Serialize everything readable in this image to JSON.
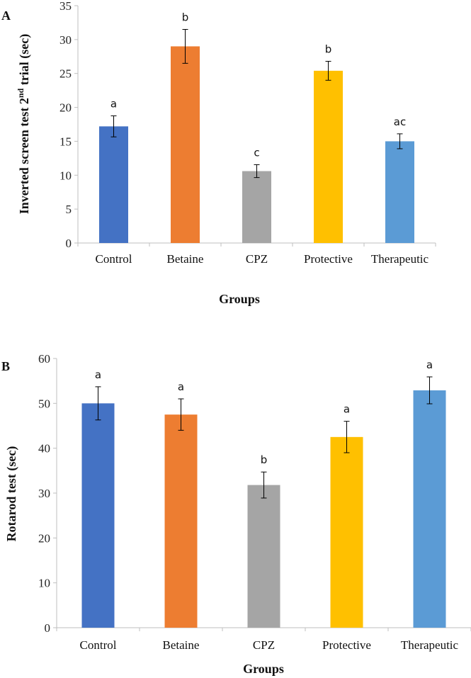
{
  "chart_data": [
    {
      "type": "bar",
      "panel": "A",
      "categories": [
        "Control",
        "Betaine",
        "CPZ",
        "Protective",
        "Therapeutic"
      ],
      "values": [
        17.2,
        29.0,
        10.6,
        25.4,
        15.0
      ],
      "errors": [
        1.55,
        2.5,
        0.95,
        1.4,
        1.1
      ],
      "significance": [
        "a",
        "b",
        "c",
        "b",
        "ac"
      ],
      "colors": [
        "#4472C4",
        "#ED7D31",
        "#A5A5A5",
        "#FFC000",
        "#5B9BD5"
      ],
      "xlabel": "Groups",
      "ylabel_parts": [
        "Inverted screen test 2",
        "nd",
        " trial (sec)"
      ],
      "ylim": [
        0,
        35
      ],
      "yticks": [
        "0",
        "5",
        "10",
        "15",
        "20",
        "25",
        "30",
        "35"
      ],
      "grid": false
    },
    {
      "type": "bar",
      "panel": "B",
      "categories": [
        "Control",
        "Betaine",
        "CPZ",
        "Protective",
        "Therapeutic"
      ],
      "values": [
        50.0,
        47.5,
        31.8,
        42.5,
        52.9
      ],
      "errors": [
        3.7,
        3.5,
        2.9,
        3.5,
        3.0
      ],
      "significance": [
        "a",
        "a",
        "b",
        "a",
        "a"
      ],
      "colors": [
        "#4472C4",
        "#ED7D31",
        "#A5A5A5",
        "#FFC000",
        "#5B9BD5"
      ],
      "xlabel": "Groups",
      "ylabel": "Rotarod test (sec)",
      "ylim": [
        0,
        60
      ],
      "yticks": [
        "0",
        "10",
        "20",
        "30",
        "40",
        "50",
        "60"
      ],
      "grid": false
    }
  ]
}
